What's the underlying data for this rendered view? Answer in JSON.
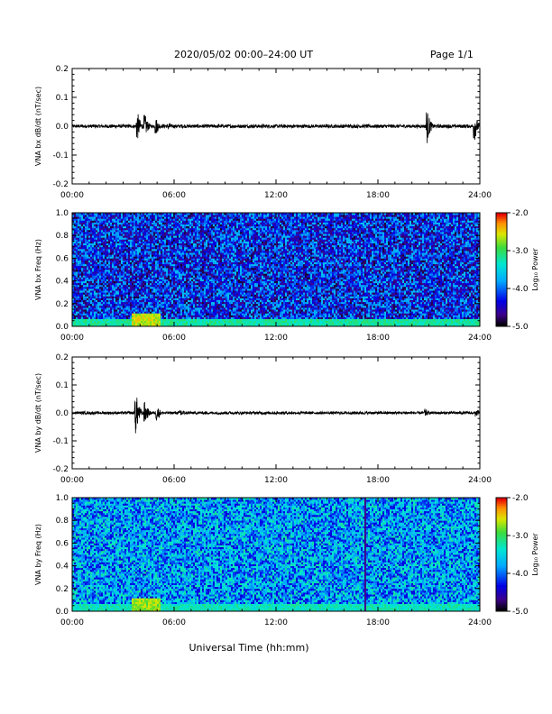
{
  "header": {
    "title": "2020/05/02  00:00–24:00 UT",
    "page": "Page 1/1"
  },
  "chart_data": [
    {
      "type": "line",
      "panel": "bx_waveform",
      "ylabel": "VNA bx dB/dt (nT/sec)",
      "ylim": [
        -0.2,
        0.2
      ],
      "yticks": [
        "-0.2",
        "-0.1",
        "0.0",
        "0.1",
        "0.2"
      ],
      "xlim": [
        "00:00",
        "24:00"
      ],
      "xticks": [
        "00:00",
        "06:00",
        "12:00",
        "18:00",
        "24:00"
      ],
      "baseline": 0.0,
      "noise_amplitude": 0.006,
      "bursts": [
        {
          "t": 3.85,
          "amp": 0.05
        },
        {
          "t": 4.3,
          "amp": 0.04
        },
        {
          "t": 4.95,
          "amp": 0.03
        },
        {
          "t": 5.7,
          "amp": 0.015
        },
        {
          "t": 20.9,
          "amp": 0.06
        },
        {
          "t": 23.7,
          "amp": 0.05
        }
      ],
      "color": "#000000"
    },
    {
      "type": "heatmap",
      "panel": "bx_spectrogram",
      "ylabel": "VNA bx Freq (Hz)",
      "ylim": [
        0.0,
        1.0
      ],
      "yticks": [
        "0.0",
        "0.2",
        "0.4",
        "0.6",
        "0.8",
        "1.0"
      ],
      "xlim": [
        "00:00",
        "24:00"
      ],
      "xticks": [
        "00:00",
        "06:00",
        "12:00",
        "18:00",
        "24:00"
      ],
      "colorbar": {
        "label": "Log₁₀ Power",
        "range": [
          -5.0,
          -2.0
        ],
        "ticks": [
          "-2.0",
          "-3.0",
          "-4.0",
          "-5.0"
        ]
      },
      "background_level": -4.25,
      "low_freq_band_level": -3.2,
      "event": {
        "t_start": 3.5,
        "t_end": 5.2,
        "level": -2.6
      }
    },
    {
      "type": "line",
      "panel": "by_waveform",
      "ylabel": "VNA by dB/dt (nT/sec)",
      "ylim": [
        -0.2,
        0.2
      ],
      "yticks": [
        "-0.2",
        "-0.1",
        "0.0",
        "0.1",
        "0.2"
      ],
      "xlim": [
        "00:00",
        "24:00"
      ],
      "xticks": [
        "00:00",
        "06:00",
        "12:00",
        "18:00",
        "24:00"
      ],
      "baseline": 0.0,
      "noise_amplitude": 0.005,
      "bursts": [
        {
          "t": 3.75,
          "amp": 0.08
        },
        {
          "t": 4.3,
          "amp": 0.04
        },
        {
          "t": 5.0,
          "amp": 0.03
        },
        {
          "t": 6.4,
          "amp": 0.02
        },
        {
          "t": 20.8,
          "amp": 0.015
        },
        {
          "t": 23.8,
          "amp": 0.015
        }
      ],
      "color": "#000000"
    },
    {
      "type": "heatmap",
      "panel": "by_spectrogram",
      "ylabel": "VNA by Freq (Hz)",
      "ylim": [
        0.0,
        1.0
      ],
      "yticks": [
        "0.0",
        "0.2",
        "0.4",
        "0.6",
        "0.8",
        "1.0"
      ],
      "xlim": [
        "00:00",
        "24:00"
      ],
      "xticks": [
        "00:00",
        "06:00",
        "12:00",
        "18:00",
        "24:00"
      ],
      "colorbar": {
        "label": "Log₁₀ Power",
        "range": [
          -5.0,
          -2.0
        ],
        "ticks": [
          "-2.0",
          "-3.0",
          "-4.0",
          "-5.0"
        ]
      },
      "background_level": -3.8,
      "low_freq_band_level": -3.3,
      "event": {
        "t_start": 3.5,
        "t_end": 5.2,
        "level": -2.7
      },
      "dark_line_t": 17.3
    }
  ],
  "xlabel": "Universal Time (hh:mm)"
}
